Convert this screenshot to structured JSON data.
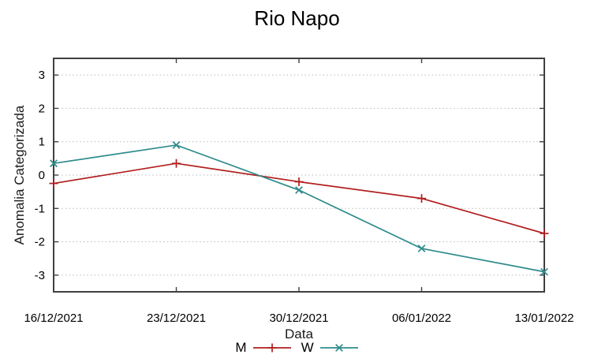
{
  "chart_data": {
    "type": "line",
    "title": "Rio Napo",
    "xlabel": "Data",
    "ylabel": "Anomalia Categorizada",
    "categories": [
      "16/12/2021",
      "23/12/2021",
      "30/12/2021",
      "06/01/2022",
      "13/01/2022"
    ],
    "y_ticks": [
      3,
      2,
      1,
      0,
      -1,
      -2,
      -3
    ],
    "ylim": [
      -3.5,
      3.5
    ],
    "grid": "horizontal-dotted",
    "legend_position": "bottom-center",
    "series": [
      {
        "name": "M",
        "color": "#b21e1e",
        "marker": "plus",
        "values": [
          -0.25,
          0.35,
          -0.2,
          -0.7,
          -1.75
        ]
      },
      {
        "name": "W",
        "color": "#2e8b8b",
        "marker": "cross",
        "values": [
          0.35,
          0.9,
          -0.45,
          -2.2,
          -2.9
        ]
      }
    ],
    "colors": {
      "axis": "#404040",
      "grid": "#bdbdbd",
      "text": "#000000",
      "background": "#ffffff"
    }
  }
}
